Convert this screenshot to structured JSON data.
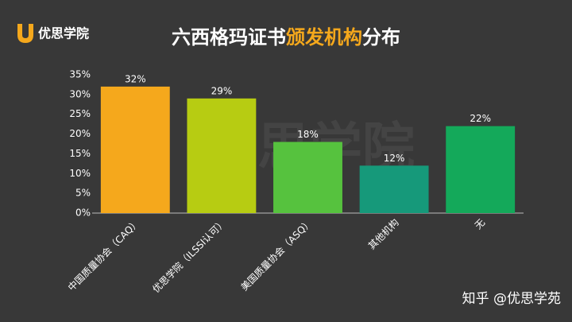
{
  "logo": "优思学院",
  "watermark": "优思学院",
  "credit": "知乎 @优思学苑",
  "chart_data": {
    "type": "bar",
    "title": [
      "六西格玛证书",
      "颁发机构",
      "分布"
    ],
    "title_highlight_color": "#f5a81c",
    "categories": [
      "中国质量协会（CAQ）",
      "优思学院（ILSSI认可）",
      "美国质量协会（ASQ）",
      "其他机构",
      "无"
    ],
    "values": [
      32,
      29,
      18,
      12,
      22
    ],
    "value_labels": [
      "32%",
      "29%",
      "18%",
      "12%",
      "22%"
    ],
    "colors": [
      "#f5a81c",
      "#b7cc12",
      "#56c23e",
      "#16997a",
      "#14a95a"
    ],
    "ylim": [
      0,
      35
    ],
    "yticks": [
      {
        "value": 0,
        "label": "0%"
      },
      {
        "value": 5,
        "label": "5%"
      },
      {
        "value": 10,
        "label": "10%"
      },
      {
        "value": 15,
        "label": "15%"
      },
      {
        "value": 20,
        "label": "20%"
      },
      {
        "value": 25,
        "label": "25%"
      },
      {
        "value": 30,
        "label": "30%"
      },
      {
        "value": 35,
        "label": "35%"
      }
    ],
    "grid": false
  }
}
